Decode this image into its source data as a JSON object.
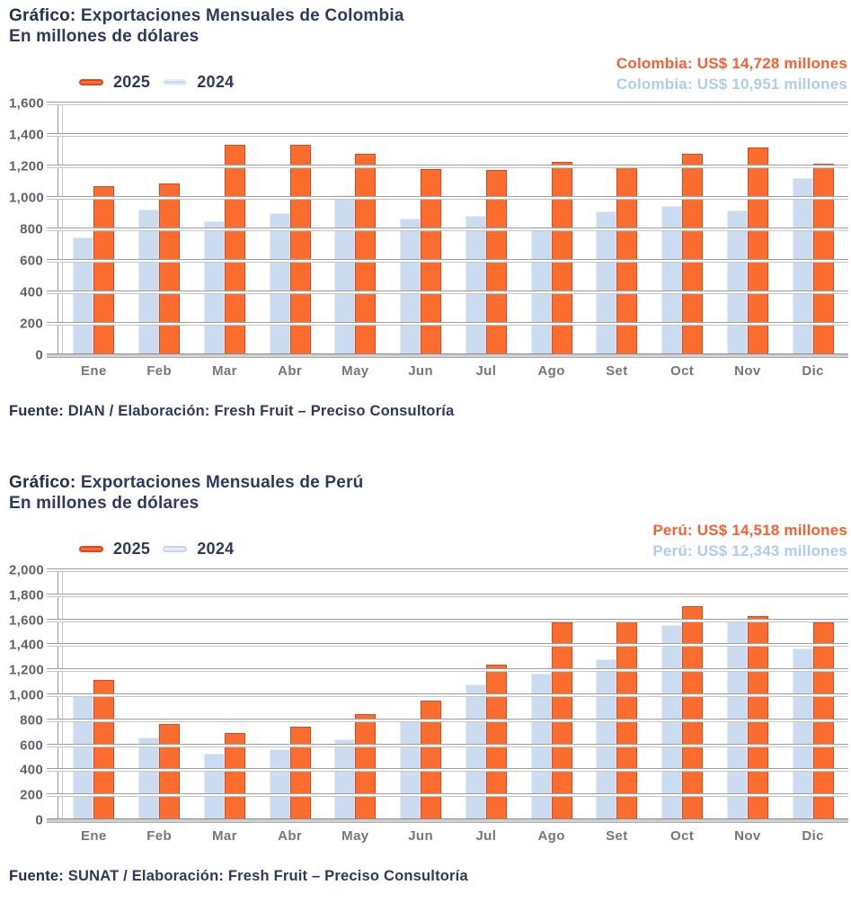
{
  "colors": {
    "background": "#FFFFFF",
    "navy_text": "#2C3A5E",
    "axis_text": "#5E6270",
    "month_text": "#71767F",
    "orange_series": "#FB6D2E",
    "blue_series_fill": "#CBDCF1"
  },
  "chart_data": [
    {
      "type": "bar",
      "title_prefix": "Gráfico:",
      "title_rest": " Exportaciones Mensuales de Colombia",
      "subtitle": "En millones de dólares",
      "categories": [
        "Ene",
        "Feb",
        "Mar",
        "Abr",
        "May",
        "Jun",
        "Jul",
        "Ago",
        "Set",
        "Oct",
        "Nov",
        "Dic"
      ],
      "series": [
        {
          "name": "2025",
          "color": "#FB6D2E",
          "border_color": "#E2451D",
          "values": [
            1075,
            1090,
            1340,
            1335,
            1280,
            1185,
            1175,
            1230,
            1205,
            1280,
            1320,
            1215
          ]
        },
        {
          "name": "2024",
          "color": "#CBDCF1",
          "border_color": "#E2ECF9",
          "values": [
            750,
            925,
            850,
            905,
            1015,
            870,
            885,
            820,
            915,
            950,
            920,
            1125
          ]
        }
      ],
      "group_order": [
        "2024",
        "2025"
      ],
      "legend": [
        {
          "label": "2025",
          "fill": "#FB6D2E",
          "border": "#E2451D"
        },
        {
          "label": "2024",
          "fill": "#C9DCF4",
          "border": "#E6EFFB"
        }
      ],
      "legend_position": "top-left",
      "grid": true,
      "ylim": [
        0,
        1600
      ],
      "ytick_step": 200,
      "annotations": [
        {
          "text": "Colombia: US$ 14,728 millones",
          "color": "#FC5E2C"
        },
        {
          "text": "Colombia: US$ 10,951 millones",
          "color": "#AFCBEE"
        }
      ],
      "source_prefix": "Fuente:",
      "source_rest": " DIAN / Elaboración: Fresh Fruit – Preciso Consultoría"
    },
    {
      "type": "bar",
      "title_prefix": "Gráfico:",
      "title_rest": " Exportaciones Mensuales de Perú",
      "subtitle": "En millones de dólares",
      "categories": [
        "Ene",
        "Feb",
        "Mar",
        "Abr",
        "May",
        "Jun",
        "Jul",
        "Ago",
        "Set",
        "Oct",
        "Nov",
        "Dic"
      ],
      "series": [
        {
          "name": "2025",
          "color": "#FB6D2E",
          "border_color": "#E2451D",
          "values": [
            1120,
            770,
            695,
            745,
            850,
            960,
            1245,
            1580,
            1610,
            1715,
            1630,
            1580
          ]
        },
        {
          "name": "2024",
          "color": "#CBDCF1",
          "border_color": "#E2ECF9",
          "values": [
            1020,
            665,
            530,
            565,
            645,
            805,
            1090,
            1170,
            1290,
            1560,
            1600,
            1375
          ]
        }
      ],
      "group_order": [
        "2024",
        "2025"
      ],
      "legend": [
        {
          "label": "2025",
          "fill": "#FB6D2E",
          "border": "#E2451D"
        },
        {
          "label": "2024",
          "fill": "#E7EDF7",
          "border": "#C4D5EB"
        }
      ],
      "legend_position": "top-left",
      "grid": true,
      "ylim": [
        0,
        2000
      ],
      "ytick_step": 200,
      "annotations": [
        {
          "text": "Perú: US$ 14,518 millones",
          "color": "#FC5E2C"
        },
        {
          "text": "Perú: US$ 12,343 millones",
          "color": "#AFCBEE"
        }
      ],
      "source_prefix": "Fuente:",
      "source_rest": " SUNAT / Elaboración: Fresh Fruit – Preciso Consultoría"
    }
  ]
}
